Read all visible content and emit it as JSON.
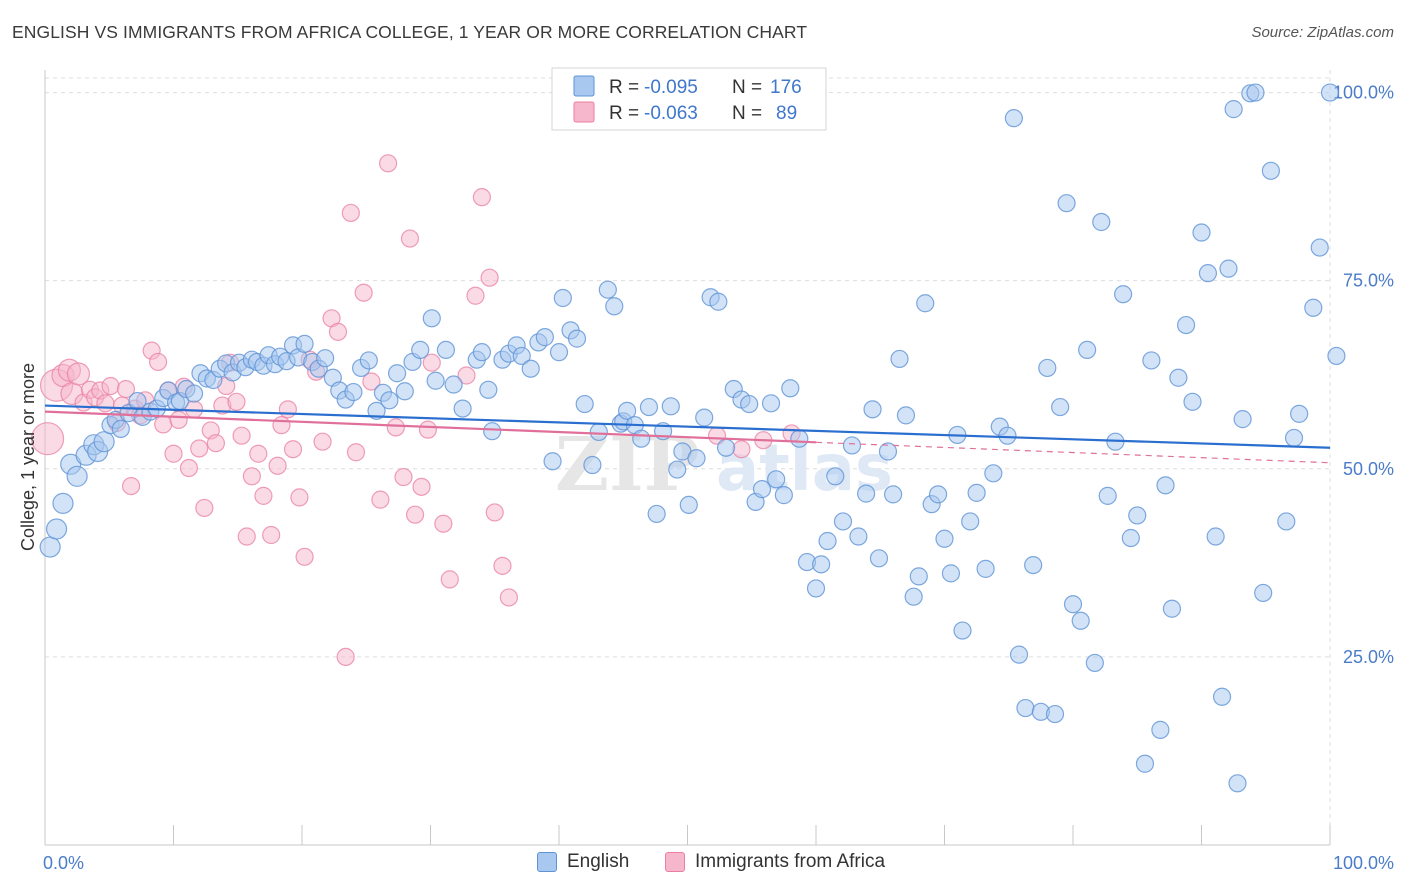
{
  "header": {
    "title": "ENGLISH VS IMMIGRANTS FROM AFRICA COLLEGE, 1 YEAR OR MORE CORRELATION CHART",
    "source": "Source: ZipAtlas.com"
  },
  "watermark": {
    "zip": "ZIP",
    "atlas": "atlas"
  },
  "colors": {
    "english_fill": "#a8c8f0",
    "english_stroke": "#5f93d6",
    "english_line": "#2a6ecf",
    "africa_fill": "#f6b6cb",
    "africa_stroke": "#ea7fa2",
    "africa_line": "#e0709a",
    "axis_label": "#4a7cc9",
    "grid": "#dddddd"
  },
  "stats_legend": [
    {
      "r_label": "R =",
      "r_value": "-0.095",
      "n_label": "N =",
      "n_value": "176"
    },
    {
      "r_label": "R =",
      "r_value": "-0.063",
      "n_label": "N =",
      "n_value": "89"
    }
  ],
  "chart_data": {
    "type": "scatter",
    "title": "ENGLISH VS IMMIGRANTS FROM AFRICA COLLEGE, 1 YEAR OR MORE CORRELATION CHART",
    "xlabel": "",
    "ylabel": "College, 1 year or more",
    "xlim": [
      0,
      100
    ],
    "ylim": [
      0,
      103
    ],
    "x_tick_labels": [
      "0.0%",
      "100.0%"
    ],
    "y_ticks": [
      25,
      50,
      75,
      100
    ],
    "y_tick_labels": [
      "25.0%",
      "50.0%",
      "75.0%",
      "100.0%"
    ],
    "grid": true,
    "legend_position": "bottom-center",
    "series": [
      {
        "name": "English",
        "trend": {
          "x": [
            0,
            100
          ],
          "y": [
            58.4,
            52.8
          ]
        },
        "points": [
          [
            0.4,
            39.6
          ],
          [
            0.9,
            42.0
          ],
          [
            1.4,
            45.4
          ],
          [
            2.0,
            50.6
          ],
          [
            2.5,
            49.0
          ],
          [
            3.2,
            51.8
          ],
          [
            3.8,
            53.2
          ],
          [
            4.1,
            52.3
          ],
          [
            4.6,
            53.6
          ],
          [
            5.1,
            55.8
          ],
          [
            5.5,
            56.5
          ],
          [
            5.9,
            55.3
          ],
          [
            6.5,
            57.4
          ],
          [
            7.2,
            59.0
          ],
          [
            7.6,
            56.9
          ],
          [
            8.2,
            57.6
          ],
          [
            8.7,
            58.0
          ],
          [
            9.2,
            59.4
          ],
          [
            9.6,
            60.4
          ],
          [
            10.2,
            58.8
          ],
          [
            10.5,
            59.0
          ],
          [
            11.0,
            60.6
          ],
          [
            11.6,
            60.0
          ],
          [
            12.1,
            62.7
          ],
          [
            12.6,
            62.0
          ],
          [
            13.1,
            61.8
          ],
          [
            13.6,
            63.3
          ],
          [
            14.1,
            64.0
          ],
          [
            14.6,
            62.8
          ],
          [
            15.1,
            64.1
          ],
          [
            15.6,
            63.5
          ],
          [
            16.1,
            64.5
          ],
          [
            16.5,
            64.2
          ],
          [
            17.0,
            63.7
          ],
          [
            17.4,
            65.1
          ],
          [
            17.9,
            63.9
          ],
          [
            18.3,
            64.9
          ],
          [
            18.8,
            64.3
          ],
          [
            19.3,
            66.4
          ],
          [
            19.7,
            64.8
          ],
          [
            20.2,
            66.6
          ],
          [
            20.8,
            64.2
          ],
          [
            21.3,
            63.3
          ],
          [
            21.8,
            64.7
          ],
          [
            22.4,
            62.1
          ],
          [
            22.9,
            60.4
          ],
          [
            23.4,
            59.2
          ],
          [
            24.0,
            60.2
          ],
          [
            24.6,
            63.4
          ],
          [
            25.2,
            64.4
          ],
          [
            25.8,
            57.7
          ],
          [
            26.3,
            60.1
          ],
          [
            26.8,
            59.1
          ],
          [
            27.4,
            62.7
          ],
          [
            28.0,
            60.3
          ],
          [
            28.6,
            64.2
          ],
          [
            29.2,
            65.8
          ],
          [
            30.1,
            70.0
          ],
          [
            30.4,
            61.7
          ],
          [
            31.2,
            65.8
          ],
          [
            31.8,
            61.2
          ],
          [
            32.5,
            58.0
          ],
          [
            33.6,
            64.5
          ],
          [
            34.0,
            65.5
          ],
          [
            34.5,
            60.5
          ],
          [
            34.8,
            55.0
          ],
          [
            35.6,
            64.5
          ],
          [
            36.1,
            65.3
          ],
          [
            36.7,
            66.4
          ],
          [
            37.1,
            65.0
          ],
          [
            37.8,
            63.3
          ],
          [
            38.4,
            66.8
          ],
          [
            38.9,
            67.5
          ],
          [
            39.5,
            51.0
          ],
          [
            40.0,
            65.5
          ],
          [
            40.3,
            72.7
          ],
          [
            40.9,
            68.4
          ],
          [
            41.4,
            67.3
          ],
          [
            42.0,
            58.6
          ],
          [
            42.6,
            50.5
          ],
          [
            43.1,
            54.9
          ],
          [
            43.8,
            73.8
          ],
          [
            44.3,
            71.6
          ],
          [
            44.8,
            56.0
          ],
          [
            45.0,
            56.3
          ],
          [
            45.3,
            57.7
          ],
          [
            45.9,
            55.8
          ],
          [
            46.4,
            54.0
          ],
          [
            47.0,
            58.2
          ],
          [
            47.6,
            44.0
          ],
          [
            48.1,
            55.0
          ],
          [
            48.7,
            58.3
          ],
          [
            49.2,
            49.9
          ],
          [
            49.6,
            52.3
          ],
          [
            50.1,
            45.2
          ],
          [
            50.7,
            51.4
          ],
          [
            51.3,
            56.8
          ],
          [
            51.8,
            72.8
          ],
          [
            52.4,
            72.2
          ],
          [
            53.0,
            52.8
          ],
          [
            53.6,
            60.6
          ],
          [
            54.2,
            59.2
          ],
          [
            54.8,
            58.6
          ],
          [
            55.3,
            45.6
          ],
          [
            55.8,
            47.3
          ],
          [
            56.5,
            58.7
          ],
          [
            56.9,
            48.6
          ],
          [
            57.5,
            46.5
          ],
          [
            58.0,
            60.7
          ],
          [
            58.7,
            54.0
          ],
          [
            59.3,
            37.6
          ],
          [
            60.0,
            34.1
          ],
          [
            60.4,
            37.3
          ],
          [
            60.9,
            40.4
          ],
          [
            61.5,
            49.0
          ],
          [
            62.1,
            43.0
          ],
          [
            62.8,
            53.1
          ],
          [
            63.3,
            41.0
          ],
          [
            63.9,
            46.7
          ],
          [
            64.4,
            57.9
          ],
          [
            64.9,
            38.1
          ],
          [
            65.6,
            52.3
          ],
          [
            66.0,
            46.6
          ],
          [
            66.5,
            64.6
          ],
          [
            67.0,
            57.1
          ],
          [
            67.6,
            33.0
          ],
          [
            68.0,
            35.7
          ],
          [
            68.5,
            72.0
          ],
          [
            69.0,
            45.3
          ],
          [
            69.5,
            46.6
          ],
          [
            70.0,
            40.7
          ],
          [
            70.5,
            36.1
          ],
          [
            71.0,
            54.5
          ],
          [
            71.4,
            28.5
          ],
          [
            72.0,
            43.0
          ],
          [
            72.5,
            46.8
          ],
          [
            73.2,
            36.7
          ],
          [
            73.8,
            49.4
          ],
          [
            74.3,
            55.6
          ],
          [
            74.9,
            54.4
          ],
          [
            75.4,
            96.6
          ],
          [
            75.8,
            25.3
          ],
          [
            76.3,
            18.2
          ],
          [
            76.9,
            37.2
          ],
          [
            77.5,
            17.7
          ],
          [
            78.0,
            63.4
          ],
          [
            78.6,
            17.4
          ],
          [
            79.0,
            58.2
          ],
          [
            79.5,
            85.3
          ],
          [
            80.0,
            32.0
          ],
          [
            80.6,
            29.8
          ],
          [
            81.1,
            65.8
          ],
          [
            81.7,
            24.2
          ],
          [
            82.2,
            82.8
          ],
          [
            82.7,
            46.4
          ],
          [
            83.3,
            53.6
          ],
          [
            83.9,
            73.2
          ],
          [
            84.5,
            40.8
          ],
          [
            85.0,
            43.8
          ],
          [
            85.6,
            10.8
          ],
          [
            86.1,
            64.4
          ],
          [
            86.8,
            15.3
          ],
          [
            87.2,
            47.8
          ],
          [
            87.7,
            31.4
          ],
          [
            88.2,
            62.1
          ],
          [
            88.8,
            69.1
          ],
          [
            89.3,
            58.9
          ],
          [
            90.0,
            81.4
          ],
          [
            90.5,
            76.0
          ],
          [
            91.1,
            41.0
          ],
          [
            91.6,
            19.7
          ],
          [
            92.1,
            76.6
          ],
          [
            92.5,
            97.8
          ],
          [
            92.8,
            8.2
          ],
          [
            93.2,
            56.6
          ],
          [
            93.8,
            99.9
          ],
          [
            94.2,
            100.0
          ],
          [
            94.8,
            33.5
          ],
          [
            95.4,
            89.6
          ],
          [
            96.6,
            43.0
          ],
          [
            97.2,
            54.1
          ],
          [
            97.6,
            57.3
          ],
          [
            98.7,
            71.4
          ],
          [
            99.2,
            79.4
          ],
          [
            100.0,
            100.0
          ],
          [
            100.5,
            65.0
          ]
        ]
      },
      {
        "name": "Immigrants from Africa",
        "trend": {
          "x": [
            0,
            100
          ],
          "y": [
            57.6,
            50.8
          ]
        },
        "points": [
          [
            0.2,
            54.0
          ],
          [
            0.9,
            61.1
          ],
          [
            1.4,
            62.4
          ],
          [
            1.9,
            63.1
          ],
          [
            2.1,
            60.0
          ],
          [
            2.6,
            62.6
          ],
          [
            3.0,
            58.8
          ],
          [
            3.5,
            60.5
          ],
          [
            3.9,
            59.5
          ],
          [
            4.3,
            60.4
          ],
          [
            4.7,
            58.7
          ],
          [
            5.1,
            61.0
          ],
          [
            5.6,
            56.1
          ],
          [
            6.0,
            58.4
          ],
          [
            6.3,
            60.6
          ],
          [
            6.7,
            47.7
          ],
          [
            7.0,
            58.0
          ],
          [
            7.4,
            57.1
          ],
          [
            7.8,
            59.1
          ],
          [
            8.3,
            65.7
          ],
          [
            8.8,
            64.2
          ],
          [
            9.2,
            55.9
          ],
          [
            9.6,
            60.4
          ],
          [
            10.0,
            52.0
          ],
          [
            10.4,
            56.5
          ],
          [
            10.8,
            60.9
          ],
          [
            11.2,
            50.1
          ],
          [
            11.6,
            57.9
          ],
          [
            12.0,
            52.7
          ],
          [
            12.4,
            44.8
          ],
          [
            12.9,
            55.1
          ],
          [
            13.3,
            53.4
          ],
          [
            13.8,
            58.4
          ],
          [
            14.1,
            61.0
          ],
          [
            14.4,
            64.1
          ],
          [
            14.9,
            58.9
          ],
          [
            15.3,
            54.4
          ],
          [
            15.7,
            41.0
          ],
          [
            16.1,
            49.0
          ],
          [
            16.6,
            52.0
          ],
          [
            17.0,
            46.4
          ],
          [
            17.6,
            41.2
          ],
          [
            18.1,
            50.4
          ],
          [
            18.4,
            55.8
          ],
          [
            18.9,
            57.9
          ],
          [
            19.3,
            52.6
          ],
          [
            19.8,
            46.2
          ],
          [
            20.2,
            38.3
          ],
          [
            20.6,
            64.5
          ],
          [
            21.1,
            62.9
          ],
          [
            21.6,
            53.6
          ],
          [
            22.3,
            70.0
          ],
          [
            22.8,
            68.2
          ],
          [
            23.4,
            25.0
          ],
          [
            23.8,
            84.0
          ],
          [
            24.2,
            52.2
          ],
          [
            24.8,
            73.4
          ],
          [
            25.4,
            61.6
          ],
          [
            26.1,
            45.9
          ],
          [
            26.7,
            90.6
          ],
          [
            27.3,
            55.5
          ],
          [
            27.9,
            48.9
          ],
          [
            28.4,
            80.6
          ],
          [
            28.8,
            43.9
          ],
          [
            29.3,
            47.6
          ],
          [
            29.8,
            55.2
          ],
          [
            30.1,
            64.1
          ],
          [
            31.0,
            42.7
          ],
          [
            31.5,
            35.3
          ],
          [
            32.8,
            62.4
          ],
          [
            33.5,
            73.0
          ],
          [
            34.0,
            86.1
          ],
          [
            34.6,
            75.4
          ],
          [
            35.0,
            44.2
          ],
          [
            35.6,
            37.1
          ],
          [
            36.1,
            32.9
          ],
          [
            52.3,
            54.4
          ],
          [
            54.2,
            52.6
          ],
          [
            55.9,
            53.8
          ],
          [
            58.1,
            54.7
          ]
        ]
      }
    ]
  },
  "bottom_legend": [
    {
      "label": "English"
    },
    {
      "label": "Immigrants from Africa"
    }
  ]
}
